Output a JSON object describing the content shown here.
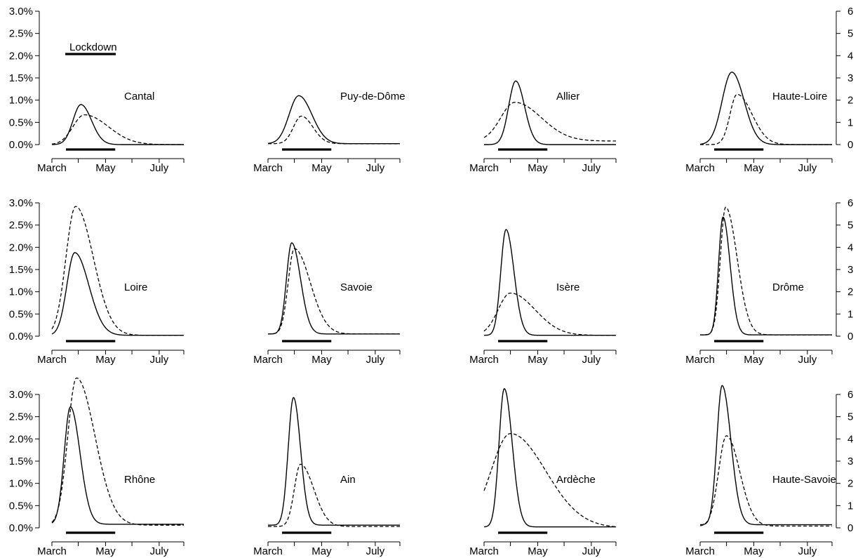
{
  "chart_data": {
    "type": "line",
    "layout": "3x4 small multiples",
    "x_ticks": [
      "March",
      "May",
      "July"
    ],
    "left_axis": {
      "ticks": [
        "0.0%",
        "0.5%",
        "1.0%",
        "1.5%",
        "2.0%",
        "2.5%",
        "3.0%"
      ],
      "range": [
        0,
        3
      ]
    },
    "right_axis": {
      "ticks": [
        "0",
        "1",
        "2",
        "3",
        "4",
        "5",
        "6"
      ],
      "range": [
        0,
        6
      ]
    },
    "legend": {
      "label": "Lockdown",
      "position": "top-left"
    },
    "lockdown_period": {
      "start_day": 16,
      "end_day": 72
    },
    "x_range_days": [
      0,
      150
    ],
    "panels": [
      {
        "name": "Cantal",
        "solid": {
          "peak_day": 33,
          "peak": 0.9,
          "rise": 9,
          "decay": 12,
          "base": 0.0
        },
        "dashed": {
          "peak_day": 37,
          "peak": 0.67,
          "rise": 13,
          "decay": 27,
          "base": 0.0
        }
      },
      {
        "name": "Puy-de-Dôme",
        "solid": {
          "peak_day": 35,
          "peak": 1.1,
          "rise": 11,
          "decay": 15,
          "base": 0.02
        },
        "dashed": {
          "peak_day": 38,
          "peak": 0.64,
          "rise": 9,
          "decay": 13,
          "base": 0.02
        }
      },
      {
        "name": "Allier",
        "solid": {
          "peak_day": 36,
          "peak": 1.43,
          "rise": 8,
          "decay": 10,
          "base": 0.0
        },
        "dashed": {
          "peak_day": 35,
          "peak": 0.95,
          "rise": 16,
          "decay": 30,
          "base": 0.08
        }
      },
      {
        "name": "Haute-Loire",
        "solid": {
          "peak_day": 36,
          "peak": 1.63,
          "rise": 11,
          "decay": 14,
          "base": 0.0
        },
        "dashed": {
          "peak_day": 42,
          "peak": 1.13,
          "rise": 8,
          "decay": 17,
          "base": 0.0
        }
      },
      {
        "name": "Loire",
        "solid": {
          "peak_day": 26,
          "peak": 1.88,
          "rise": 9,
          "decay": 16,
          "base": 0.02
        },
        "dashed": {
          "peak_day": 27,
          "peak": 2.92,
          "rise": 11,
          "decay": 20,
          "base": 0.02
        }
      },
      {
        "name": "Savoie",
        "solid": {
          "peak_day": 27,
          "peak": 2.1,
          "rise": 6,
          "decay": 10,
          "base": 0.05
        },
        "dashed": {
          "peak_day": 30,
          "peak": 1.97,
          "rise": 7,
          "decay": 18,
          "base": 0.05
        }
      },
      {
        "name": "Isère",
        "solid": {
          "peak_day": 25,
          "peak": 2.4,
          "rise": 6,
          "decay": 9,
          "base": 0.02
        },
        "dashed": {
          "peak_day": 30,
          "peak": 0.97,
          "rise": 14,
          "decay": 28,
          "base": 0.02
        }
      },
      {
        "name": "Drôme",
        "solid": {
          "peak_day": 26,
          "peak": 2.68,
          "rise": 5,
          "decay": 8,
          "base": 0.03
        },
        "dashed": {
          "peak_day": 29,
          "peak": 2.9,
          "rise": 6,
          "decay": 13,
          "base": 0.03
        }
      },
      {
        "name": "Rhône",
        "solid": {
          "peak_day": 21,
          "peak": 2.72,
          "rise": 7,
          "decay": 11,
          "base": 0.08
        },
        "dashed": {
          "peak_day": 28,
          "peak": 3.37,
          "rise": 10,
          "decay": 21,
          "base": 0.06
        }
      },
      {
        "name": "Ain",
        "solid": {
          "peak_day": 29,
          "peak": 2.93,
          "rise": 6,
          "decay": 8,
          "base": 0.06
        },
        "dashed": {
          "peak_day": 37,
          "peak": 1.43,
          "rise": 7,
          "decay": 15,
          "base": 0.03
        }
      },
      {
        "name": "Ardèche",
        "solid": {
          "peak_day": 23,
          "peak": 3.13,
          "rise": 6,
          "decay": 9,
          "base": 0.02
        },
        "dashed": {
          "peak_day": 30,
          "peak": 2.12,
          "rise": 22,
          "decay": 40,
          "base": 0.0
        }
      },
      {
        "name": "Haute-Savoie",
        "solid": {
          "peak_day": 25,
          "peak": 3.2,
          "rise": 6,
          "decay": 10,
          "base": 0.07
        },
        "dashed": {
          "peak_day": 30,
          "peak": 2.07,
          "rise": 9,
          "decay": 15,
          "base": 0.04
        }
      }
    ]
  }
}
